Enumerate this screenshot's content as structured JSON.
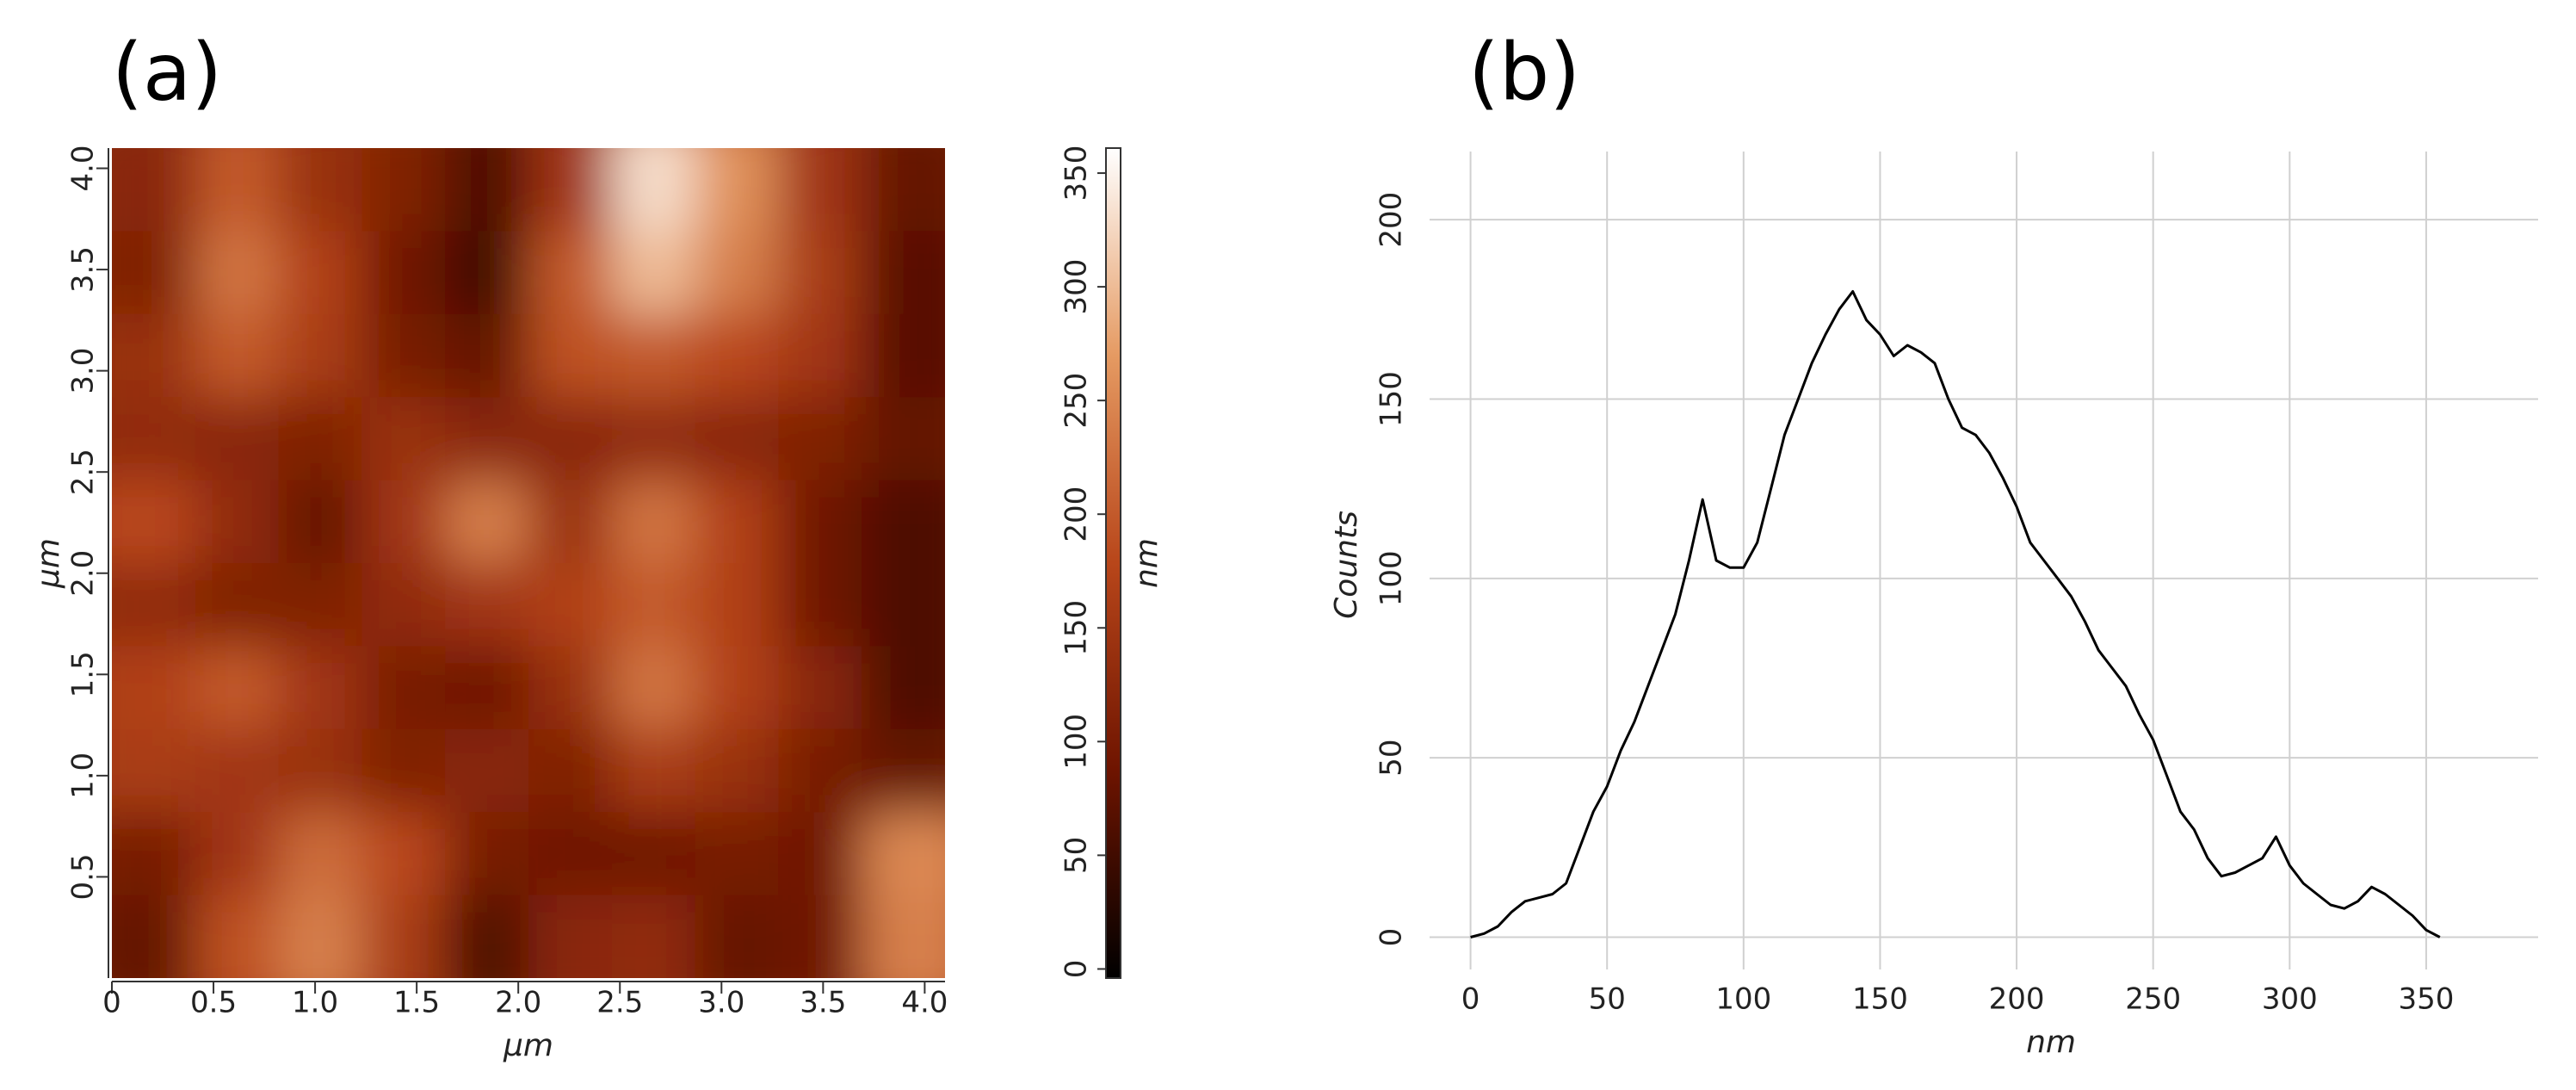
{
  "chart_data": [
    {
      "type": "heatmap",
      "title": "(a)",
      "xlabel": "μm",
      "ylabel": "μm",
      "xlim": [
        0,
        4.1
      ],
      "ylim": [
        0,
        4.1
      ],
      "xticks": [
        0,
        0.5,
        {
          "value": 1,
          "label": "1.0"
        },
        1.5,
        {
          "value": 2,
          "label": "2.0"
        },
        2.5,
        {
          "value": 3,
          "label": "3.0"
        },
        3.5,
        {
          "value": 4,
          "label": "4.0"
        }
      ],
      "yticks": [
        0.5,
        {
          "value": 1,
          "label": "1.0"
        },
        1.5,
        {
          "value": 2,
          "label": "2.0"
        },
        2.5,
        {
          "value": 3,
          "label": "3.0"
        },
        3.5,
        {
          "value": 4,
          "label": "4.0"
        }
      ],
      "values": [
        [
          120,
          200,
          140,
          110,
          60,
          150,
          330,
          260,
          150,
          80
        ],
        [
          110,
          230,
          170,
          90,
          50,
          200,
          300,
          240,
          160,
          70
        ],
        [
          140,
          200,
          160,
          100,
          80,
          190,
          200,
          180,
          150,
          70
        ],
        [
          130,
          120,
          110,
          140,
          120,
          120,
          130,
          120,
          110,
          80
        ],
        [
          180,
          130,
          80,
          150,
          240,
          140,
          230,
          170,
          90,
          60
        ],
        [
          130,
          110,
          110,
          130,
          150,
          170,
          200,
          170,
          90,
          60
        ],
        [
          170,
          200,
          150,
          100,
          90,
          140,
          230,
          170,
          120,
          60
        ],
        [
          160,
          150,
          140,
          110,
          120,
          110,
          160,
          140,
          100,
          80
        ],
        [
          100,
          150,
          220,
          180,
          100,
          90,
          90,
          100,
          90,
          250
        ],
        [
          80,
          190,
          240,
          160,
          60,
          120,
          130,
          80,
          90,
          240
        ]
      ],
      "colorbar_label": "nm",
      "clim": [
        -4,
        361
      ],
      "colorbar_ticks": [
        0,
        50,
        100,
        150,
        200,
        250,
        300,
        350
      ],
      "colormap": [
        "#000000",
        "#6e1400",
        "#b8461a",
        "#e59a62",
        "#ffffff"
      ]
    },
    {
      "type": "line",
      "title": "(b)",
      "xlabel": "nm",
      "ylabel": "Counts",
      "color": "#000000",
      "grid": true,
      "xlim": [
        -15,
        391
      ],
      "ylim": [
        -9,
        219
      ],
      "xticks": [
        0,
        50,
        100,
        150,
        200,
        250,
        300,
        350
      ],
      "yticks": [
        0,
        50,
        100,
        150,
        200
      ],
      "x": [
        0,
        5,
        10,
        15,
        20,
        25,
        30,
        35,
        40,
        45,
        50,
        55,
        60,
        65,
        70,
        75,
        80,
        85,
        90,
        95,
        100,
        105,
        110,
        115,
        120,
        125,
        130,
        135,
        140,
        145,
        150,
        155,
        160,
        165,
        170,
        175,
        180,
        185,
        190,
        195,
        200,
        205,
        210,
        215,
        220,
        225,
        230,
        235,
        240,
        245,
        250,
        255,
        260,
        265,
        270,
        275,
        280,
        285,
        290,
        295,
        300,
        305,
        310,
        315,
        320,
        325,
        330,
        335,
        340,
        345,
        350,
        355
      ],
      "values": [
        0,
        1,
        3,
        7,
        10,
        11,
        12,
        15,
        25,
        35,
        42,
        52,
        60,
        70,
        80,
        90,
        105,
        122,
        105,
        103,
        103,
        110,
        125,
        140,
        150,
        160,
        168,
        175,
        180,
        172,
        168,
        162,
        165,
        163,
        160,
        150,
        142,
        140,
        135,
        128,
        120,
        110,
        105,
        100,
        95,
        88,
        80,
        75,
        70,
        62,
        55,
        45,
        35,
        30,
        22,
        17,
        18,
        20,
        22,
        28,
        20,
        15,
        12,
        9,
        8,
        10,
        14,
        12,
        9,
        6,
        2,
        0
      ]
    }
  ]
}
